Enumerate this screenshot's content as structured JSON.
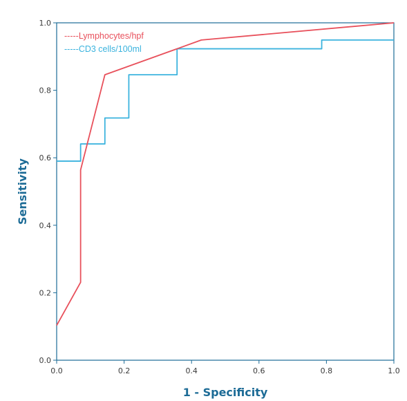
{
  "chart_data": {
    "type": "line",
    "title": "",
    "xlabel": "1 - Specificity",
    "ylabel": "Sensitivity",
    "xlim": [
      0,
      1
    ],
    "ylim": [
      0,
      1
    ],
    "xticks": [
      "0.0",
      "0.2",
      "0.4",
      "0.6",
      "0.8",
      "1.0"
    ],
    "yticks": [
      "0.0",
      "0.2",
      "0.4",
      "0.6",
      "0.8",
      "1.0"
    ],
    "grid": false,
    "legend_position": "top-left",
    "series": [
      {
        "name": "-----Lymphocytes/hpf",
        "color": "#e8505b",
        "x": [
          0.0,
          0.071,
          0.071,
          0.143,
          0.357,
          0.429,
          1.0
        ],
        "y": [
          0.103,
          0.231,
          0.564,
          0.846,
          0.923,
          0.949,
          1.0
        ]
      },
      {
        "name": "-----CD3 cells/100ml",
        "color": "#3bb3de",
        "x": [
          0.0,
          0.071,
          0.071,
          0.143,
          0.143,
          0.214,
          0.214,
          0.357,
          0.357,
          0.786,
          0.786,
          1.0
        ],
        "y": [
          0.59,
          0.59,
          0.641,
          0.641,
          0.718,
          0.718,
          0.846,
          0.846,
          0.923,
          0.923,
          0.949,
          0.949
        ]
      }
    ]
  },
  "colors": {
    "axis": "#1c6b96",
    "tick_text": "#3a3a3a"
  }
}
